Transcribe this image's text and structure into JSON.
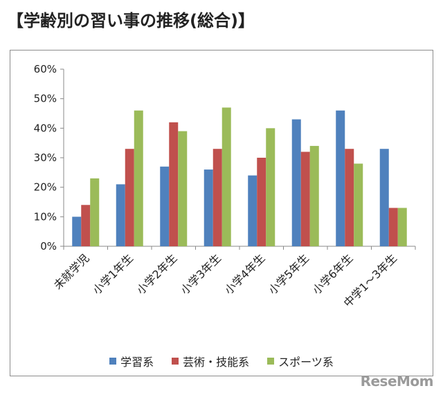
{
  "title": "【学齢別の習い事の推移(総合)】",
  "watermark": "ReseMom",
  "chart_data": {
    "type": "bar",
    "categories": [
      "未就学児",
      "小学1年生",
      "小学2年生",
      "小学3年生",
      "小学4年生",
      "小学5年生",
      "小学6年生",
      "中学1～3年生"
    ],
    "series": [
      {
        "name": "学習系",
        "color": "#4f81bd",
        "values": [
          10,
          21,
          27,
          26,
          24,
          43,
          46,
          33
        ]
      },
      {
        "name": "芸術・技能系",
        "color": "#c0504d",
        "values": [
          14,
          33,
          42,
          33,
          30,
          32,
          33,
          13
        ]
      },
      {
        "name": "スポーツ系",
        "color": "#9bbb59",
        "values": [
          23,
          46,
          39,
          47,
          40,
          34,
          28,
          13
        ]
      }
    ],
    "yticks": [
      "0%",
      "10%",
      "20%",
      "30%",
      "40%",
      "50%",
      "60%"
    ],
    "ylim": [
      0,
      60
    ],
    "grid": false,
    "legend_position": "bottom"
  }
}
